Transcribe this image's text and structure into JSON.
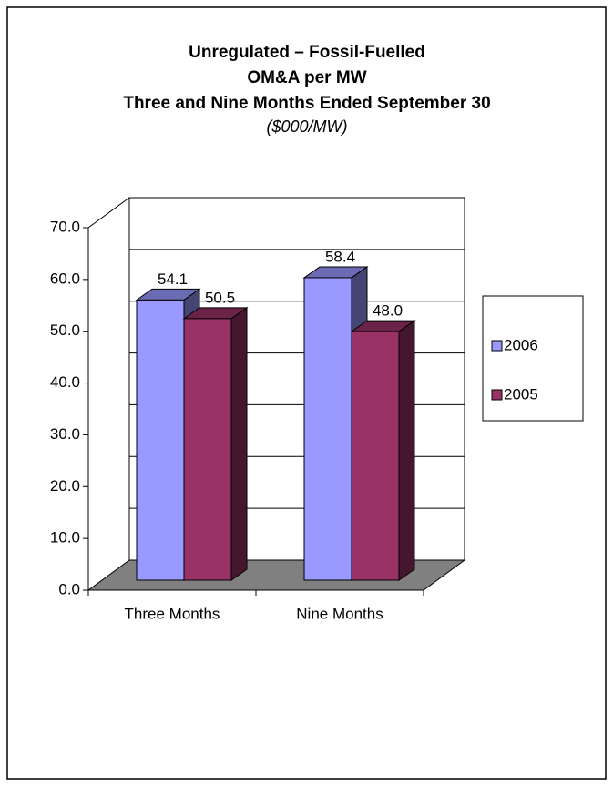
{
  "chart_data": {
    "type": "bar3d",
    "title": [
      "Unregulated  – Fossil-Fuelled",
      "OM&A per MW",
      "Three and Nine Months Ended September 30"
    ],
    "subtitle": "($000/MW)",
    "categories": [
      "Three Months",
      "Nine Months"
    ],
    "series": [
      {
        "name": "2006",
        "color": "#9999ff",
        "values": [
          54.1,
          58.4
        ],
        "value_labels": [
          "54.1",
          "58.4"
        ]
      },
      {
        "name": "2005",
        "color": "#993366",
        "values": [
          50.5,
          48.0
        ],
        "value_labels": [
          "50.5",
          "48.0"
        ]
      }
    ],
    "ylim": [
      0,
      70
    ],
    "yticks": [
      {
        "value": 0,
        "label": "0.0"
      },
      {
        "value": 10,
        "label": "10.0"
      },
      {
        "value": 20,
        "label": "20.0"
      },
      {
        "value": 30,
        "label": "30.0"
      },
      {
        "value": 40,
        "label": "40.0"
      },
      {
        "value": 50,
        "label": "50.0"
      },
      {
        "value": 60,
        "label": "60.0"
      },
      {
        "value": 70,
        "label": "70.0"
      }
    ],
    "grid": true,
    "legend": "right"
  }
}
